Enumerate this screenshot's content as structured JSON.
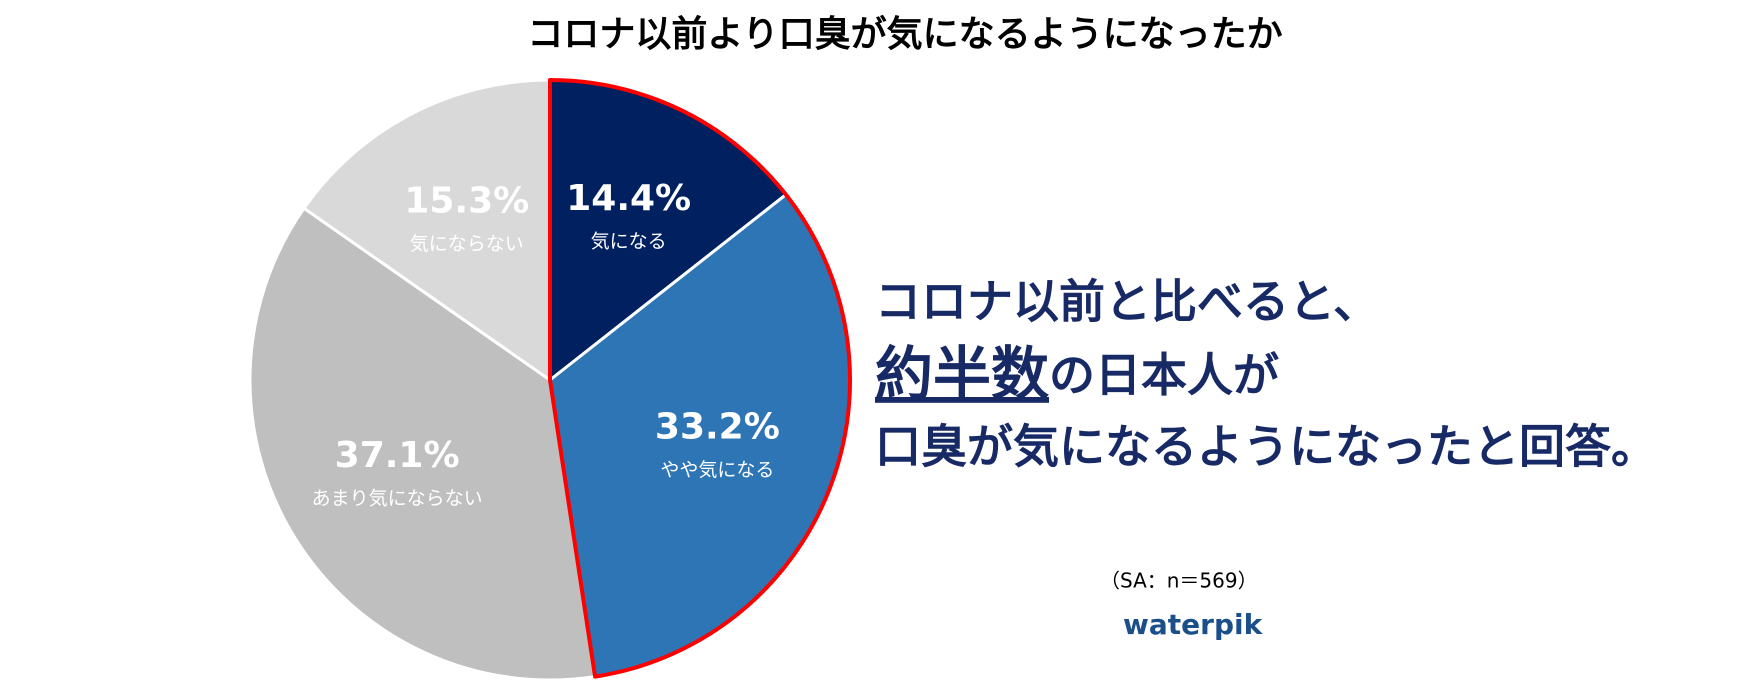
{
  "chart_data": {
    "type": "pie",
    "title": "コロナ以前より口臭が気になるようになったか",
    "categories": [
      "気になる",
      "やや気になる",
      "あまり気にならない",
      "気にならない"
    ],
    "values": [
      14.4,
      33.2,
      37.1,
      15.3
    ],
    "value_labels": [
      "14.4%",
      "33.2%",
      "37.1%",
      "15.3%"
    ],
    "colors": [
      "#002060",
      "#2e75b6",
      "#bfbfbf",
      "#d9d9d9"
    ],
    "highlight": [
      "気になる",
      "やや気になる"
    ],
    "highlight_color": "#ff0000",
    "annotation": {
      "line1": "コロナ以前と比べると、",
      "emphasis": "約半数",
      "line2": "の日本人が",
      "line3": "口臭が気になるようになったと回答。"
    },
    "note": "（SA：n＝569）",
    "logo": "waterpik"
  }
}
